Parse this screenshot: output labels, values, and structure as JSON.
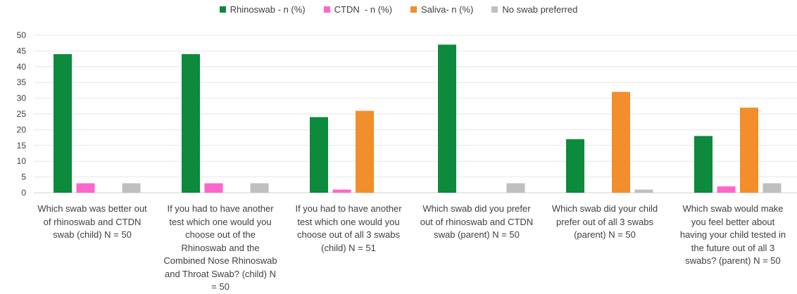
{
  "chart_data": {
    "type": "bar",
    "title": "",
    "xlabel": "",
    "ylabel": "",
    "ylim": [
      0,
      50
    ],
    "yticks": [
      0,
      5,
      10,
      15,
      20,
      25,
      30,
      35,
      40,
      45,
      50
    ],
    "grid": true,
    "legend_position": "top",
    "categories": [
      [
        "Which swab was better out",
        "of rhinoswab and CTDN",
        "swab (child) N = 50"
      ],
      [
        "If you had to have another",
        "test which one would you",
        "choose out of the",
        "Rhinoswab and the",
        "Combined Nose Rhinoswab",
        "and Throat Swab? (child) N",
        "= 50"
      ],
      [
        "If you had to have another",
        "test which one would you",
        "choose out of all 3 swabs",
        "(child) N = 51"
      ],
      [
        "Which swab did you prefer",
        "out of rhinoswab and CTDN",
        "swab (parent) N = 50"
      ],
      [
        "Which swab did your child",
        "prefer out of all 3 swabs",
        "(parent) N = 50"
      ],
      [
        "Which swab would make",
        "you feel better about",
        "having your child tested in",
        "the future out of all 3",
        "swabs? (parent) N = 50"
      ]
    ],
    "series": [
      {
        "name": "Rhinoswab - n (%)",
        "color": "#0e8a3c",
        "values": [
          44,
          44,
          24,
          47,
          17,
          18
        ]
      },
      {
        "name": "CTDN  - n (%)",
        "color": "#ff66cc",
        "values": [
          3,
          3,
          1,
          0,
          0,
          2
        ]
      },
      {
        "name": "Saliva- n (%)",
        "color": "#f28e2b",
        "values": [
          0,
          0,
          26,
          0,
          32,
          27
        ]
      },
      {
        "name": "No swab preferred",
        "color": "#bfbfbf",
        "values": [
          3,
          3,
          0,
          3,
          1,
          3
        ]
      }
    ]
  }
}
